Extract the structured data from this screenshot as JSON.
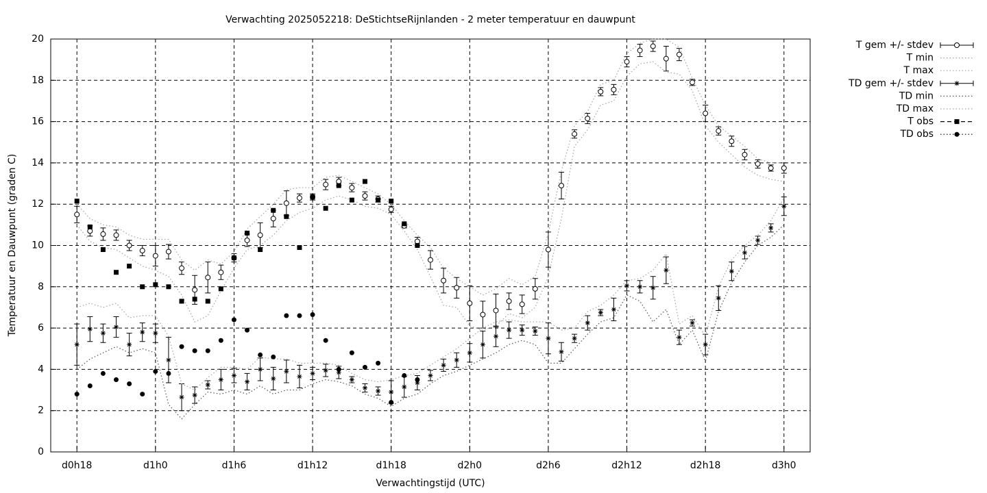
{
  "chart_data": {
    "type": "errorbar-line",
    "title": "Verwachting 2025052218: DeStichtseRijnlanden - 2 meter temperatuur en dauwpunt",
    "xlabel": "Verwachtingstijd (UTC)",
    "ylabel": "Temperatuur en Dauwpunt (graden C)",
    "xlim": [
      -2,
      56
    ],
    "ylim": [
      0,
      20
    ],
    "xticks": [
      {
        "value": 0,
        "label": "d0h18"
      },
      {
        "value": 6,
        "label": "d1h0"
      },
      {
        "value": 12,
        "label": "d1h6"
      },
      {
        "value": 18,
        "label": "d1h12"
      },
      {
        "value": 24,
        "label": "d1h18"
      },
      {
        "value": 30,
        "label": "d2h0"
      },
      {
        "value": 36,
        "label": "d2h6"
      },
      {
        "value": 42,
        "label": "d2h12"
      },
      {
        "value": 48,
        "label": "d2h18"
      },
      {
        "value": 54,
        "label": "d3h0"
      }
    ],
    "yticks": [
      0,
      2,
      4,
      6,
      8,
      10,
      12,
      14,
      16,
      18,
      20
    ],
    "grid": true,
    "legend": "outside-right",
    "x": [
      0,
      1,
      2,
      3,
      4,
      5,
      6,
      7,
      8,
      9,
      10,
      11,
      12,
      13,
      14,
      15,
      16,
      17,
      18,
      19,
      20,
      21,
      22,
      23,
      24,
      25,
      26,
      27,
      28,
      29,
      30,
      31,
      32,
      33,
      34,
      35,
      36,
      37,
      38,
      39,
      40,
      41,
      42,
      43,
      44,
      45,
      46,
      47,
      48,
      49,
      50,
      51,
      52,
      53,
      54
    ],
    "series": [
      {
        "name": "T gem +/- stdev",
        "color": "#000000",
        "marker": "open-circle",
        "line": "errorbar",
        "values": [
          11.5,
          10.7,
          10.55,
          10.5,
          10.0,
          9.75,
          9.5,
          9.7,
          8.9,
          7.85,
          8.45,
          8.7,
          9.4,
          10.25,
          10.5,
          11.3,
          12.05,
          12.3,
          12.35,
          12.95,
          13.1,
          12.8,
          12.4,
          12.25,
          11.75,
          10.95,
          10.2,
          9.3,
          8.3,
          7.95,
          7.2,
          6.65,
          6.85,
          7.3,
          7.15,
          7.9,
          9.8,
          12.9,
          15.4,
          16.15,
          17.45,
          17.55,
          18.9,
          19.45,
          19.65,
          19.05,
          19.25,
          17.9,
          16.4,
          15.55,
          15.05,
          14.4,
          13.95,
          13.75,
          13.75
        ],
        "errors": [
          0.4,
          0.25,
          0.3,
          0.25,
          0.25,
          0.25,
          0.5,
          0.35,
          0.3,
          0.7,
          0.75,
          0.35,
          0.2,
          0.3,
          0.6,
          0.4,
          0.6,
          0.2,
          0.15,
          0.25,
          0.2,
          0.2,
          0.2,
          0.15,
          0.15,
          0.1,
          0.2,
          0.45,
          0.6,
          0.5,
          0.85,
          0.65,
          0.8,
          0.4,
          0.45,
          0.5,
          0.85,
          0.65,
          0.2,
          0.25,
          0.2,
          0.25,
          0.25,
          0.3,
          0.25,
          0.6,
          0.3,
          0.15,
          0.4,
          0.2,
          0.25,
          0.25,
          0.2,
          0.15,
          0.25
        ]
      },
      {
        "name": "T min",
        "color": "#a0a0a0",
        "marker": "none",
        "line": "dotted",
        "values": [
          11.0,
          10.2,
          9.9,
          9.8,
          9.4,
          9.0,
          8.8,
          8.5,
          7.6,
          6.3,
          6.6,
          7.8,
          8.9,
          9.8,
          10.0,
          10.5,
          11.2,
          11.6,
          11.8,
          12.2,
          12.4,
          12.2,
          11.9,
          11.8,
          11.5,
          10.7,
          9.8,
          8.5,
          7.1,
          7.0,
          6.1,
          5.9,
          6.1,
          6.7,
          6.5,
          7.0,
          8.5,
          11.3,
          14.8,
          15.6,
          16.8,
          17.0,
          18.2,
          18.8,
          18.9,
          18.4,
          18.3,
          17.5,
          15.8,
          15.0,
          14.4,
          13.8,
          13.4,
          13.2,
          13.1
        ]
      },
      {
        "name": "T max",
        "color": "#a0a0a0",
        "marker": "none",
        "line": "dotted",
        "values": [
          12.0,
          11.3,
          11.0,
          10.9,
          10.5,
          10.3,
          10.3,
          10.3,
          9.3,
          8.8,
          9.3,
          9.1,
          9.7,
          10.8,
          11.4,
          12.0,
          12.7,
          12.8,
          12.8,
          13.3,
          13.4,
          13.1,
          12.8,
          12.5,
          12.0,
          11.2,
          10.5,
          9.9,
          8.9,
          8.4,
          8.0,
          7.6,
          7.9,
          8.4,
          8.1,
          8.5,
          10.6,
          13.6,
          15.8,
          16.5,
          17.8,
          18.0,
          19.3,
          19.8,
          20.0,
          20.0,
          19.6,
          18.1,
          16.8,
          15.8,
          15.3,
          14.8,
          14.2,
          14.0,
          14.0
        ]
      },
      {
        "name": "TD gem +/- stdev",
        "color": "#000000",
        "marker": "star",
        "line": "errorbar",
        "values": [
          5.2,
          5.95,
          5.75,
          6.05,
          5.2,
          5.8,
          5.75,
          4.45,
          2.65,
          2.75,
          3.25,
          3.5,
          3.7,
          3.4,
          4.0,
          3.55,
          3.9,
          3.65,
          3.8,
          3.95,
          3.85,
          3.5,
          3.1,
          2.95,
          2.9,
          3.15,
          3.35,
          3.7,
          4.2,
          4.45,
          4.8,
          5.2,
          5.6,
          5.9,
          5.9,
          5.85,
          5.5,
          4.85,
          5.5,
          6.25,
          6.75,
          6.9,
          8.05,
          8.0,
          7.95,
          8.8,
          5.55,
          6.25,
          5.2,
          7.45,
          8.75,
          9.65,
          10.25,
          10.85,
          11.9
        ],
        "errors": [
          1.0,
          0.6,
          0.45,
          0.5,
          0.55,
          0.45,
          0.45,
          1.1,
          0.65,
          0.4,
          0.2,
          0.5,
          0.35,
          0.4,
          0.55,
          0.55,
          0.55,
          0.55,
          0.3,
          0.3,
          0.3,
          0.15,
          0.2,
          0.2,
          0.55,
          0.5,
          0.35,
          0.25,
          0.3,
          0.35,
          0.45,
          0.65,
          0.5,
          0.4,
          0.25,
          0.2,
          0.75,
          0.45,
          0.2,
          0.35,
          0.15,
          0.55,
          0.25,
          0.3,
          0.55,
          0.65,
          0.35,
          0.15,
          0.5,
          0.6,
          0.45,
          0.3,
          0.2,
          0.2,
          0.45
        ]
      },
      {
        "name": "TD min",
        "color": "#505050",
        "marker": "none",
        "line": "dotted",
        "values": [
          4.0,
          4.5,
          4.8,
          5.1,
          4.8,
          5.0,
          4.8,
          2.3,
          1.6,
          2.3,
          2.9,
          2.8,
          3.0,
          2.8,
          3.2,
          2.8,
          3.0,
          3.0,
          3.3,
          3.5,
          3.4,
          3.2,
          2.8,
          2.6,
          2.2,
          2.6,
          2.8,
          3.3,
          3.7,
          3.9,
          4.2,
          4.5,
          4.8,
          5.2,
          5.4,
          5.2,
          4.3,
          4.3,
          5.0,
          5.7,
          6.3,
          6.5,
          7.6,
          7.3,
          6.3,
          6.9,
          5.2,
          5.9,
          4.4,
          6.8,
          8.2,
          9.2,
          10.0,
          10.4,
          11.0
        ]
      },
      {
        "name": "TD max",
        "color": "#a0a0a0",
        "marker": "none",
        "line": "dotted",
        "values": [
          7.0,
          7.2,
          7.0,
          7.2,
          6.5,
          6.6,
          6.6,
          5.6,
          3.3,
          3.0,
          3.6,
          4.1,
          4.1,
          4.0,
          4.6,
          4.5,
          4.5,
          4.3,
          4.3,
          4.3,
          4.2,
          3.8,
          3.5,
          3.4,
          3.5,
          3.7,
          3.8,
          4.2,
          4.6,
          5.0,
          5.5,
          6.0,
          6.3,
          6.4,
          6.3,
          6.3,
          6.3,
          5.9,
          6.0,
          6.8,
          7.1,
          7.6,
          8.3,
          8.4,
          8.8,
          9.6,
          6.2,
          6.6,
          5.6,
          8.0,
          9.3,
          10.0,
          10.5,
          11.2,
          12.3
        ]
      },
      {
        "name": "T obs",
        "color": "#000000",
        "marker": "square",
        "line": "dashed",
        "values": [
          12.15,
          10.9,
          9.8,
          8.7,
          9.0,
          8.0,
          8.1,
          8.0,
          7.3,
          7.4,
          7.3,
          7.9,
          9.4,
          10.6,
          9.8,
          11.7,
          11.4,
          9.9,
          12.35,
          11.8,
          12.9,
          12.2,
          13.1,
          12.2,
          12.15,
          11.05,
          10.0,
          null,
          null,
          null,
          null,
          null,
          null,
          null,
          null,
          null,
          null,
          null,
          null,
          null,
          null,
          null,
          null,
          null,
          null,
          null,
          null,
          null,
          null,
          null,
          null,
          null,
          null,
          null,
          null
        ]
      },
      {
        "name": "TD obs",
        "color": "#000000",
        "marker": "dot",
        "line": "dotted",
        "values": [
          2.8,
          3.2,
          3.8,
          3.5,
          3.3,
          2.8,
          3.9,
          3.8,
          5.1,
          4.9,
          4.9,
          5.4,
          6.4,
          5.9,
          4.7,
          4.6,
          6.6,
          6.6,
          6.65,
          5.4,
          4.0,
          4.8,
          4.1,
          4.3,
          2.4,
          3.7,
          3.5,
          null,
          null,
          null,
          null,
          null,
          null,
          null,
          null,
          null,
          null,
          null,
          null,
          null,
          null,
          null,
          null,
          null,
          null,
          null,
          null,
          null,
          null,
          null,
          null,
          null,
          null,
          null,
          null
        ]
      }
    ]
  }
}
